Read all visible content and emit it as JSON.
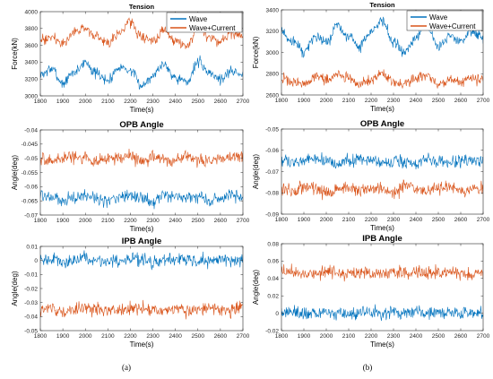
{
  "captions": {
    "left": "(a)",
    "right": "(b)"
  },
  "colors": {
    "wave": "#0072BD",
    "current": "#D95319"
  },
  "chart_data": [
    {
      "type": "line",
      "panel": "a",
      "title": "Tension",
      "xlabel": "Time(s)",
      "ylabel": "Force(kN)",
      "xlim": [
        1800,
        2700
      ],
      "ylim": [
        3000,
        4000
      ],
      "xticks": [
        1800,
        1900,
        2000,
        2100,
        2200,
        2300,
        2400,
        2500,
        2600,
        2700
      ],
      "yticks": [
        3000,
        3200,
        3400,
        3600,
        3800,
        4000
      ],
      "legend": "top-right",
      "series": [
        {
          "name": "Wave",
          "color": "#0072BD",
          "x": [
            1800,
            1850,
            1900,
            1950,
            2000,
            2050,
            2100,
            2150,
            2200,
            2250,
            2300,
            2350,
            2400,
            2450,
            2500,
            2550,
            2600,
            2650,
            2700
          ],
          "y": [
            3250,
            3320,
            3150,
            3280,
            3400,
            3260,
            3180,
            3350,
            3300,
            3120,
            3250,
            3380,
            3220,
            3160,
            3400,
            3280,
            3200,
            3300,
            3240
          ]
        },
        {
          "name": "Wave+Current",
          "color": "#D95319",
          "x": [
            1800,
            1850,
            1900,
            1950,
            2000,
            2050,
            2100,
            2150,
            2200,
            2250,
            2300,
            2350,
            2400,
            2450,
            2500,
            2550,
            2600,
            2650,
            2700
          ],
          "y": [
            3650,
            3700,
            3620,
            3750,
            3800,
            3680,
            3620,
            3760,
            3880,
            3700,
            3640,
            3780,
            3660,
            3600,
            3820,
            3700,
            3640,
            3760,
            3680
          ]
        }
      ]
    },
    {
      "type": "line",
      "panel": "a",
      "title": "OPB Angle",
      "xlabel": "Time(s)",
      "ylabel": "Angle(deg)",
      "xlim": [
        1800,
        2700
      ],
      "ylim": [
        -0.07,
        -0.04
      ],
      "xticks": [
        1800,
        1900,
        2000,
        2100,
        2200,
        2300,
        2400,
        2500,
        2600,
        2700
      ],
      "yticks": [
        -0.07,
        -0.065,
        -0.06,
        -0.055,
        -0.05,
        -0.045,
        -0.04
      ],
      "series": [
        {
          "name": "Wave",
          "color": "#0072BD",
          "x": [
            1800,
            1850,
            1900,
            1950,
            2000,
            2050,
            2100,
            2150,
            2200,
            2250,
            2300,
            2350,
            2400,
            2450,
            2500,
            2550,
            2600,
            2650,
            2700
          ],
          "y": [
            -0.063,
            -0.064,
            -0.065,
            -0.064,
            -0.063,
            -0.064,
            -0.065,
            -0.064,
            -0.063,
            -0.064,
            -0.065,
            -0.063,
            -0.064,
            -0.064,
            -0.063,
            -0.065,
            -0.064,
            -0.063,
            -0.064
          ]
        },
        {
          "name": "Wave+Current",
          "color": "#D95319",
          "x": [
            1800,
            1850,
            1900,
            1950,
            2000,
            2050,
            2100,
            2150,
            2200,
            2250,
            2300,
            2350,
            2400,
            2450,
            2500,
            2550,
            2600,
            2650,
            2700
          ],
          "y": [
            -0.05,
            -0.051,
            -0.05,
            -0.049,
            -0.05,
            -0.051,
            -0.05,
            -0.05,
            -0.049,
            -0.051,
            -0.05,
            -0.05,
            -0.051,
            -0.049,
            -0.05,
            -0.051,
            -0.05,
            -0.049,
            -0.05
          ]
        }
      ]
    },
    {
      "type": "line",
      "panel": "a",
      "title": "IPB Angle",
      "xlabel": "Time(s)",
      "ylabel": "Angle(deg)",
      "xlim": [
        1800,
        2700
      ],
      "ylim": [
        -0.05,
        0.01
      ],
      "xticks": [
        1800,
        1900,
        2000,
        2100,
        2200,
        2300,
        2400,
        2500,
        2600,
        2700
      ],
      "yticks": [
        -0.05,
        -0.04,
        -0.03,
        -0.02,
        -0.01,
        0,
        0.01
      ],
      "series": [
        {
          "name": "Wave",
          "color": "#0072BD",
          "x": [
            1800,
            1850,
            1900,
            1950,
            2000,
            2050,
            2100,
            2150,
            2200,
            2250,
            2300,
            2350,
            2400,
            2450,
            2500,
            2550,
            2600,
            2650,
            2700
          ],
          "y": [
            0.0,
            0.001,
            -0.001,
            0.0,
            0.001,
            0.0,
            -0.001,
            0.0,
            0.001,
            0.0,
            -0.001,
            0.0,
            0.0,
            0.001,
            -0.001,
            0.0,
            0.001,
            0.0,
            0.0
          ]
        },
        {
          "name": "Wave+Current",
          "color": "#D95319",
          "x": [
            1800,
            1850,
            1900,
            1950,
            2000,
            2050,
            2100,
            2150,
            2200,
            2250,
            2300,
            2350,
            2400,
            2450,
            2500,
            2550,
            2600,
            2650,
            2700
          ],
          "y": [
            -0.035,
            -0.034,
            -0.036,
            -0.035,
            -0.034,
            -0.035,
            -0.036,
            -0.035,
            -0.034,
            -0.035,
            -0.035,
            -0.036,
            -0.034,
            -0.035,
            -0.035,
            -0.034,
            -0.036,
            -0.035,
            -0.034
          ]
        }
      ]
    },
    {
      "type": "line",
      "panel": "b",
      "title": "Tension",
      "xlabel": "Time(s)",
      "ylabel": "Force(kN)",
      "xlim": [
        1800,
        2700
      ],
      "ylim": [
        2600,
        3400
      ],
      "xticks": [
        1800,
        1900,
        2000,
        2100,
        2200,
        2300,
        2400,
        2500,
        2600,
        2700
      ],
      "yticks": [
        2600,
        2800,
        3000,
        3200,
        3400
      ],
      "legend": "top-right",
      "series": [
        {
          "name": "Wave",
          "color": "#0072BD",
          "x": [
            1800,
            1850,
            1900,
            1950,
            2000,
            2050,
            2100,
            2150,
            2200,
            2250,
            2300,
            2350,
            2400,
            2450,
            2500,
            2550,
            2600,
            2650,
            2700
          ],
          "y": [
            3200,
            3100,
            3000,
            3150,
            3100,
            3250,
            3150,
            3050,
            3200,
            3300,
            3100,
            3000,
            3150,
            3250,
            3050,
            3150,
            3100,
            3200,
            3150
          ]
        },
        {
          "name": "Wave+Current",
          "color": "#D95319",
          "x": [
            1800,
            1850,
            1900,
            1950,
            2000,
            2050,
            2100,
            2150,
            2200,
            2250,
            2300,
            2350,
            2400,
            2450,
            2500,
            2550,
            2600,
            2650,
            2700
          ],
          "y": [
            2760,
            2720,
            2700,
            2780,
            2740,
            2800,
            2760,
            2700,
            2740,
            2800,
            2720,
            2700,
            2760,
            2780,
            2700,
            2740,
            2720,
            2760,
            2740
          ]
        }
      ]
    },
    {
      "type": "line",
      "panel": "b",
      "title": "OPB Angle",
      "xlabel": "Time(s)",
      "ylabel": "Angle(deg)",
      "xlim": [
        1800,
        2700
      ],
      "ylim": [
        -0.09,
        -0.05
      ],
      "xticks": [
        1800,
        1900,
        2000,
        2100,
        2200,
        2300,
        2400,
        2500,
        2600,
        2700
      ],
      "yticks": [
        -0.09,
        -0.08,
        -0.07,
        -0.06,
        -0.05
      ],
      "series": [
        {
          "name": "Wave",
          "color": "#0072BD",
          "x": [
            1800,
            1850,
            1900,
            1950,
            2000,
            2050,
            2100,
            2150,
            2200,
            2250,
            2300,
            2350,
            2400,
            2450,
            2500,
            2550,
            2600,
            2650,
            2700
          ],
          "y": [
            -0.065,
            -0.066,
            -0.065,
            -0.064,
            -0.065,
            -0.066,
            -0.065,
            -0.065,
            -0.064,
            -0.066,
            -0.065,
            -0.065,
            -0.066,
            -0.064,
            -0.065,
            -0.066,
            -0.065,
            -0.064,
            -0.065
          ]
        },
        {
          "name": "Wave+Current",
          "color": "#D95319",
          "x": [
            1800,
            1850,
            1900,
            1950,
            2000,
            2050,
            2100,
            2150,
            2200,
            2250,
            2300,
            2350,
            2400,
            2450,
            2500,
            2550,
            2600,
            2650,
            2700
          ],
          "y": [
            -0.078,
            -0.079,
            -0.077,
            -0.078,
            -0.08,
            -0.078,
            -0.077,
            -0.079,
            -0.078,
            -0.078,
            -0.08,
            -0.077,
            -0.078,
            -0.079,
            -0.078,
            -0.077,
            -0.079,
            -0.078,
            -0.078
          ]
        }
      ]
    },
    {
      "type": "line",
      "panel": "b",
      "title": "IPB Angle",
      "xlabel": "Time(s)",
      "ylabel": "Angle(deg)",
      "xlim": [
        1800,
        2700
      ],
      "ylim": [
        -0.02,
        0.08
      ],
      "xticks": [
        1800,
        1900,
        2000,
        2100,
        2200,
        2300,
        2400,
        2500,
        2600,
        2700
      ],
      "yticks": [
        -0.02,
        0,
        0.02,
        0.04,
        0.06,
        0.08
      ],
      "series": [
        {
          "name": "Wave",
          "color": "#0072BD",
          "x": [
            1800,
            1850,
            1900,
            1950,
            2000,
            2050,
            2100,
            2150,
            2200,
            2250,
            2300,
            2350,
            2400,
            2450,
            2500,
            2550,
            2600,
            2650,
            2700
          ],
          "y": [
            0.0,
            0.001,
            -0.001,
            0.0,
            0.001,
            0.0,
            -0.001,
            0.0,
            0.001,
            0.0,
            0.0,
            -0.001,
            0.001,
            0.0,
            0.0,
            0.001,
            -0.001,
            0.0,
            0.0
          ]
        },
        {
          "name": "Wave+Current",
          "color": "#D95319",
          "x": [
            1800,
            1850,
            1900,
            1950,
            2000,
            2050,
            2100,
            2150,
            2200,
            2250,
            2300,
            2350,
            2400,
            2450,
            2500,
            2550,
            2600,
            2650,
            2700
          ],
          "y": [
            0.046,
            0.047,
            0.045,
            0.046,
            0.048,
            0.046,
            0.045,
            0.047,
            0.046,
            0.045,
            0.047,
            0.046,
            0.048,
            0.046,
            0.045,
            0.047,
            0.046,
            0.045,
            0.046
          ]
        }
      ]
    }
  ]
}
